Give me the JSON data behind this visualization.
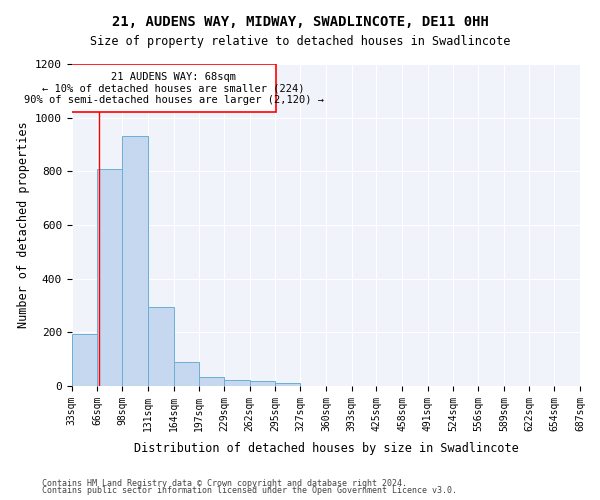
{
  "title": "21, AUDENS WAY, MIDWAY, SWADLINCOTE, DE11 0HH",
  "subtitle": "Size of property relative to detached houses in Swadlincote",
  "xlabel": "Distribution of detached houses by size in Swadlincote",
  "ylabel": "Number of detached properties",
  "bar_color": "#c5d8f0",
  "bar_edge_color": "#6baed6",
  "annotation_title": "21 AUDENS WAY: 68sqm",
  "annotation_line1": "← 10% of detached houses are smaller (224)",
  "annotation_line2": "90% of semi-detached houses are larger (2,120) →",
  "property_line_x": 68,
  "footnote1": "Contains HM Land Registry data © Crown copyright and database right 2024.",
  "footnote2": "Contains public sector information licensed under the Open Government Licence v3.0.",
  "bins": [
    33,
    66,
    98,
    131,
    164,
    197,
    229,
    262,
    295,
    327,
    360,
    393,
    425,
    458,
    491,
    524,
    556,
    589,
    622,
    654,
    687
  ],
  "values": [
    195,
    810,
    930,
    295,
    88,
    35,
    22,
    18,
    12,
    0,
    0,
    0,
    0,
    0,
    0,
    0,
    0,
    0,
    0,
    0
  ],
  "ylim": [
    0,
    1200
  ],
  "yticks": [
    0,
    200,
    400,
    600,
    800,
    1000,
    1200
  ],
  "background_color": "#f0f4fa"
}
